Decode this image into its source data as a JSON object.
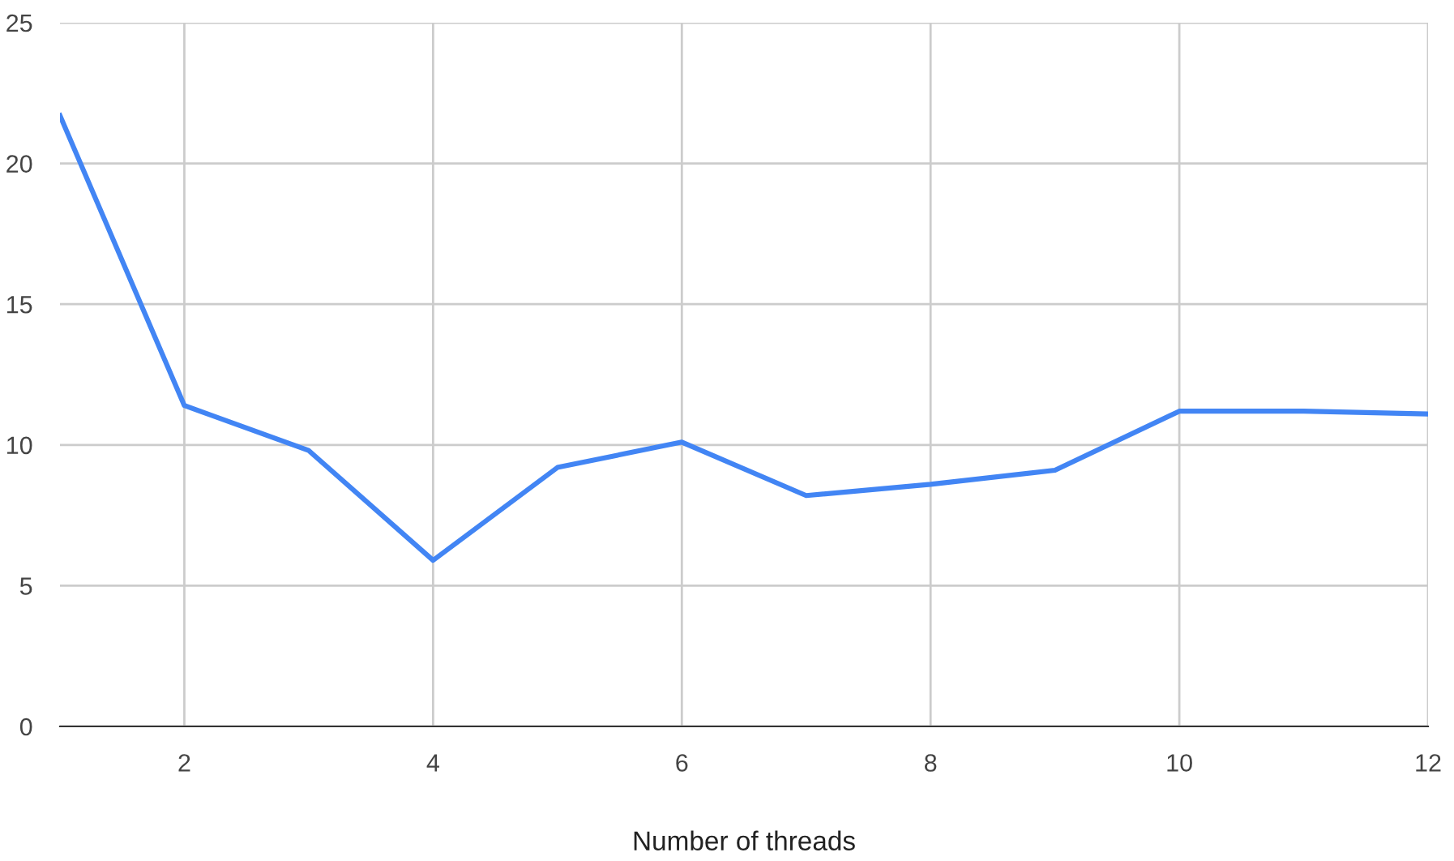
{
  "chart_data": {
    "type": "line",
    "xlabel": "Number of threads",
    "x": [
      1,
      2,
      3,
      4,
      5,
      6,
      7,
      8,
      9,
      10,
      11,
      12
    ],
    "series": [
      {
        "color": "#4285f4",
        "values": [
          21.7,
          11.4,
          9.8,
          5.9,
          9.2,
          10.1,
          8.2,
          8.6,
          9.1,
          11.2,
          11.2,
          11.1
        ]
      }
    ],
    "xlim": [
      1,
      12
    ],
    "xticks": [
      2,
      4,
      6,
      8,
      10,
      12
    ],
    "ylim": [
      0,
      25
    ],
    "yticks": [
      0,
      5,
      10,
      15,
      20,
      25
    ],
    "grid": true,
    "legend": false,
    "marker": "none",
    "line_style": "solid"
  }
}
